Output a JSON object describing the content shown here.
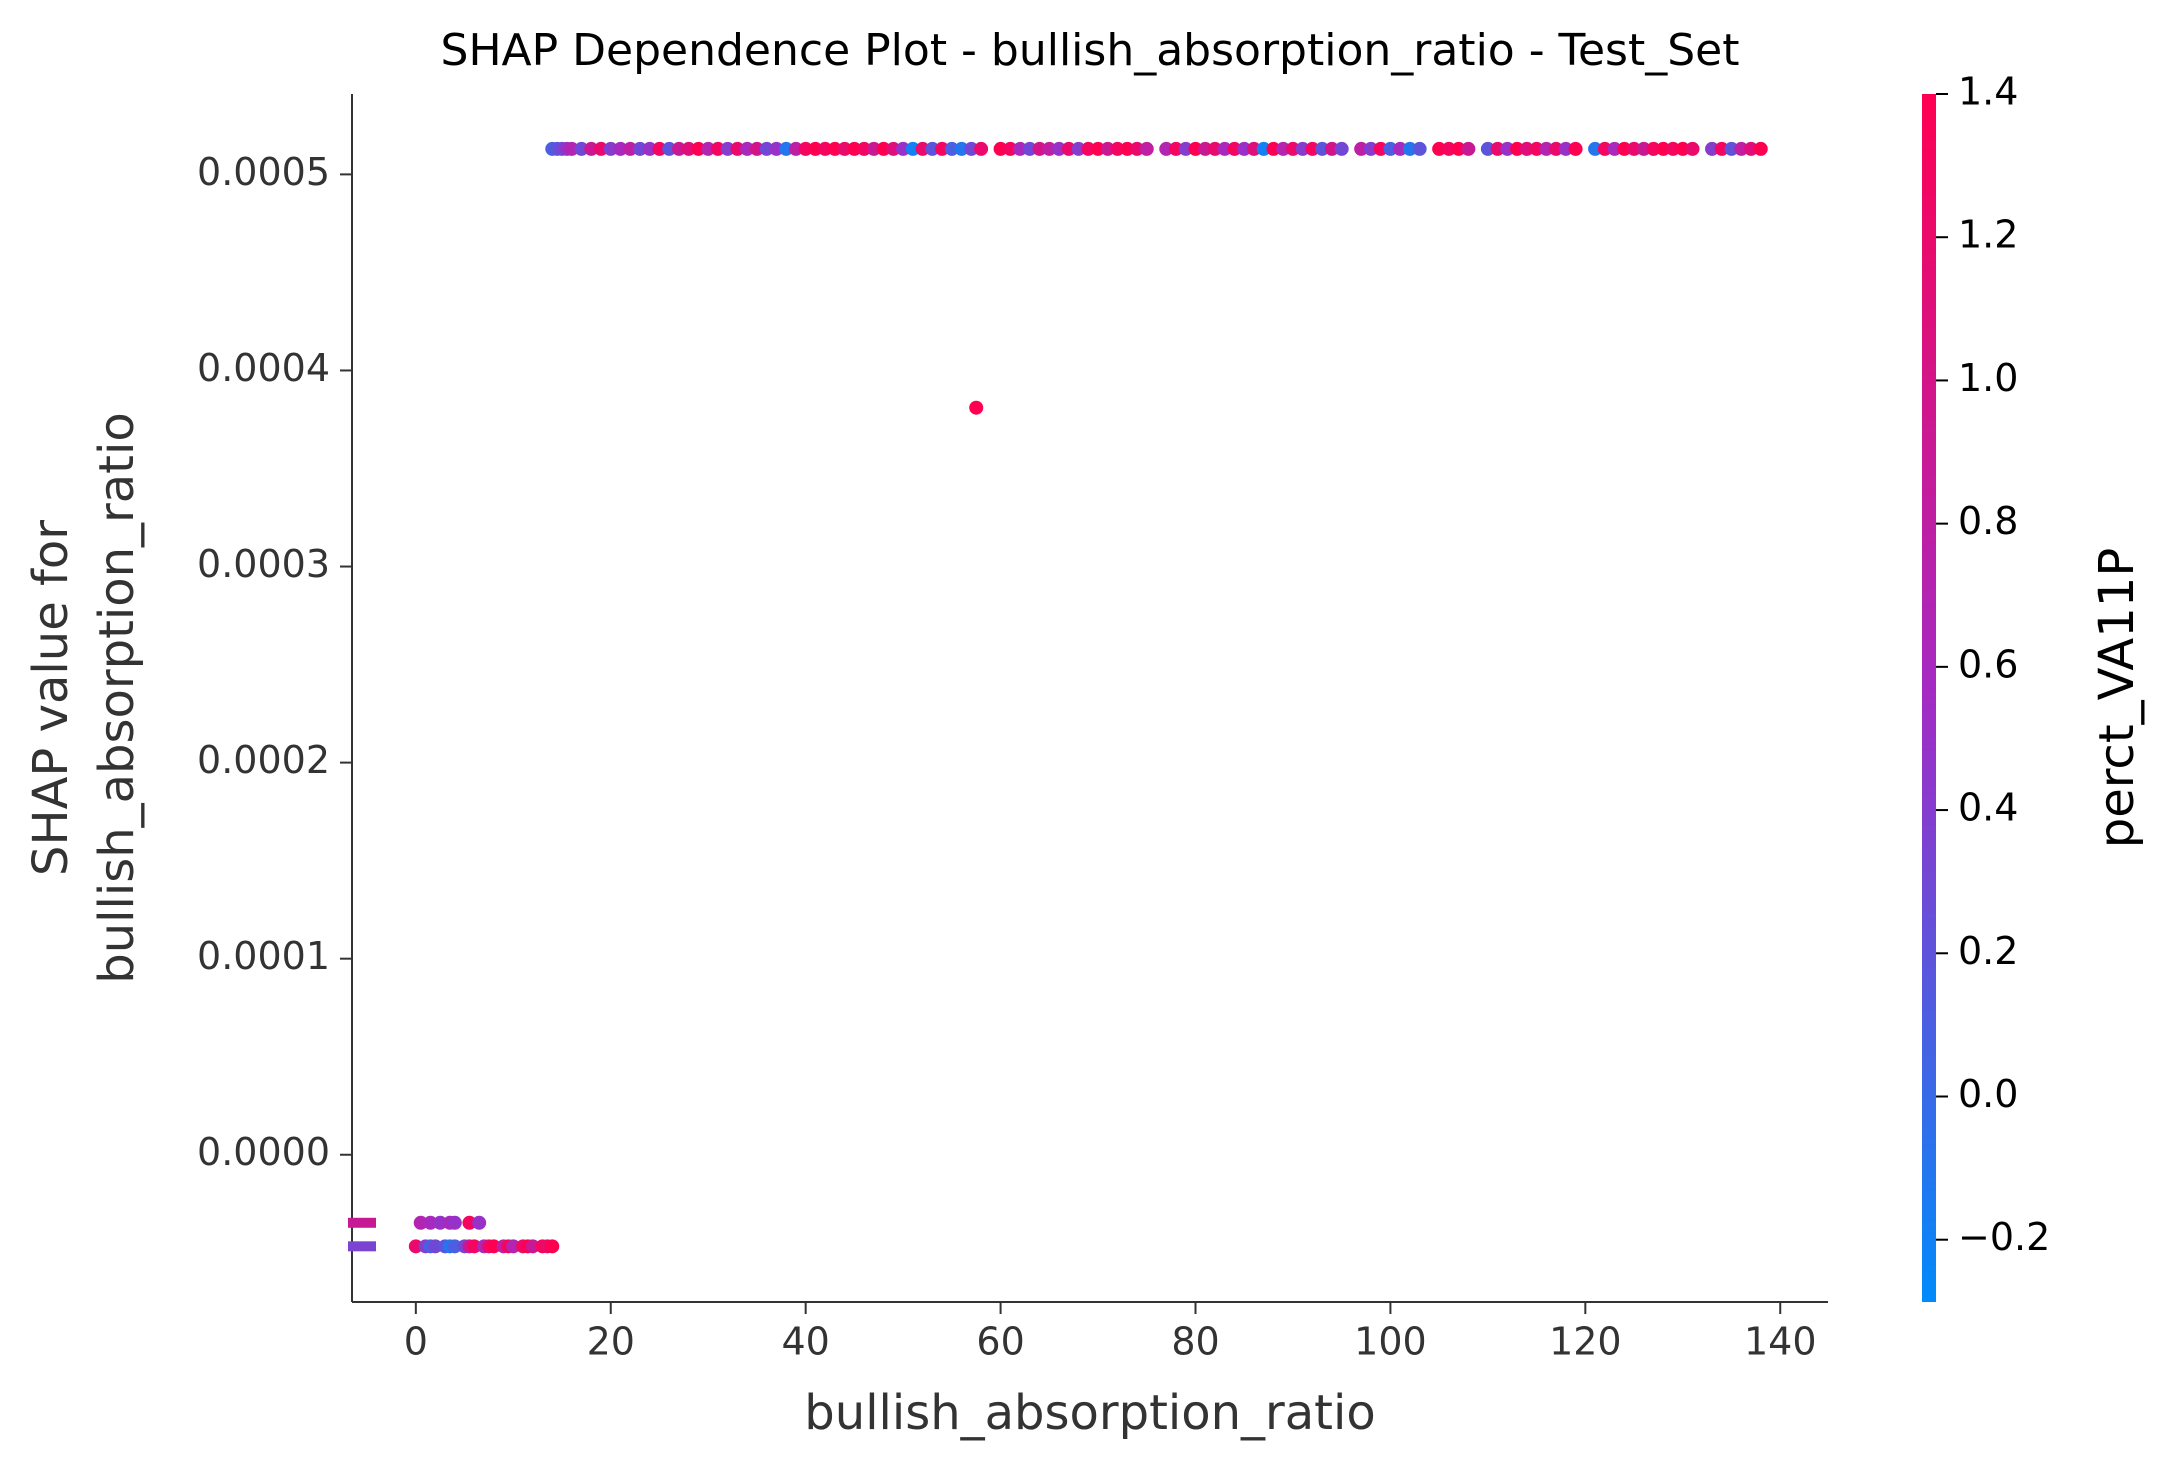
{
  "chart_data": {
    "type": "scatter",
    "title": "SHAP Dependence Plot - bullish_absorption_ratio - Test_Set",
    "xlabel": "bullish_absorption_ratio",
    "ylabel": [
      "SHAP value for",
      "bullish_absorption_ratio"
    ],
    "xlim": [
      -6.55,
      144.9
    ],
    "ylim": [
      -7.51e-05,
      0.000541
    ],
    "xticks": [
      0,
      20,
      40,
      60,
      80,
      100,
      120,
      140
    ],
    "yticks": [
      {
        "value": 0,
        "label": "0.0000"
      },
      {
        "value": 0.0001,
        "label": "0.0001"
      },
      {
        "value": 0.0002,
        "label": "0.0002"
      },
      {
        "value": 0.0003,
        "label": "0.0003"
      },
      {
        "value": 0.0004,
        "label": "0.0004"
      },
      {
        "value": 0.0005,
        "label": "0.0005"
      }
    ],
    "x": [
      14,
      14.5,
      15,
      15.5,
      16,
      17,
      18,
      19,
      20,
      21,
      22,
      23,
      24,
      25,
      26,
      27,
      28,
      29,
      30,
      31,
      32,
      33,
      34,
      35,
      36,
      37,
      38,
      39,
      40,
      41,
      42,
      43,
      44,
      45,
      46,
      47,
      48,
      49,
      50,
      51,
      52,
      53,
      54,
      55,
      56,
      57,
      58,
      60,
      61,
      62,
      63,
      64,
      65,
      66,
      67,
      68,
      69,
      70,
      71,
      72,
      73,
      74,
      75,
      77,
      78,
      79,
      80,
      81,
      82,
      83,
      84,
      85,
      86,
      87,
      88,
      89,
      90,
      91,
      92,
      93,
      94,
      95,
      97,
      98,
      99,
      100,
      101,
      102,
      103,
      105,
      106,
      107,
      108,
      110,
      111,
      112,
      113,
      114,
      115,
      116,
      117,
      118,
      119,
      121,
      122,
      123,
      124,
      125,
      126,
      127,
      128,
      129,
      130,
      131,
      133,
      134,
      135,
      136,
      137,
      138,
      57.5,
      0.5,
      1.5,
      2.5,
      3.5,
      4,
      5.5,
      6.5,
      0,
      1,
      1.5,
      2,
      3,
      3.5,
      4,
      5,
      5.5,
      6,
      7,
      7.5,
      8,
      9,
      9.5,
      10,
      11,
      11.5,
      12,
      13,
      13.5,
      14
    ],
    "values": [
      0.000513,
      0.000513,
      0.000513,
      0.000513,
      0.000513,
      0.000513,
      0.000513,
      0.000513,
      0.000513,
      0.000513,
      0.000513,
      0.000513,
      0.000513,
      0.000513,
      0.000513,
      0.000513,
      0.000513,
      0.000513,
      0.000513,
      0.000513,
      0.000513,
      0.000513,
      0.000513,
      0.000513,
      0.000513,
      0.000513,
      0.000513,
      0.000513,
      0.000513,
      0.000513,
      0.000513,
      0.000513,
      0.000513,
      0.000513,
      0.000513,
      0.000513,
      0.000513,
      0.000513,
      0.000513,
      0.000513,
      0.000513,
      0.000513,
      0.000513,
      0.000513,
      0.000513,
      0.000513,
      0.000513,
      0.000513,
      0.000513,
      0.000513,
      0.000513,
      0.000513,
      0.000513,
      0.000513,
      0.000513,
      0.000513,
      0.000513,
      0.000513,
      0.000513,
      0.000513,
      0.000513,
      0.000513,
      0.000513,
      0.000513,
      0.000513,
      0.000513,
      0.000513,
      0.000513,
      0.000513,
      0.000513,
      0.000513,
      0.000513,
      0.000513,
      0.000513,
      0.000513,
      0.000513,
      0.000513,
      0.000513,
      0.000513,
      0.000513,
      0.000513,
      0.000513,
      0.000513,
      0.000513,
      0.000513,
      0.000513,
      0.000513,
      0.000513,
      0.000513,
      0.000513,
      0.000513,
      0.000513,
      0.000513,
      0.000513,
      0.000513,
      0.000513,
      0.000513,
      0.000513,
      0.000513,
      0.000513,
      0.000513,
      0.000513,
      0.000513,
      0.000513,
      0.000513,
      0.000513,
      0.000513,
      0.000513,
      0.000513,
      0.000513,
      0.000513,
      0.000513,
      0.000513,
      0.000513,
      0.000513,
      0.000513,
      0.000513,
      0.000513,
      0.000513,
      0.000513,
      0.000381,
      -3.47e-05,
      -3.47e-05,
      -3.47e-05,
      -3.47e-05,
      -3.47e-05,
      -3.47e-05,
      -3.47e-05,
      -4.67e-05,
      -4.67e-05,
      -4.67e-05,
      -4.67e-05,
      -4.67e-05,
      -4.67e-05,
      -4.67e-05,
      -4.67e-05,
      -4.67e-05,
      -4.67e-05,
      -4.67e-05,
      -4.67e-05,
      -4.67e-05,
      -4.67e-05,
      -4.67e-05,
      -4.67e-05,
      -4.67e-05,
      -4.67e-05,
      -4.67e-05,
      -4.67e-05,
      -4.67e-05,
      -4.67e-05
    ],
    "color_values": [
      0.1,
      0.2,
      0.3,
      0.5,
      0.7,
      0.3,
      0.9,
      1.2,
      0.4,
      0.6,
      0.8,
      0.3,
      0.5,
      1.3,
      0.2,
      0.9,
      1.1,
      1.4,
      0.7,
      1.3,
      0.4,
      1.2,
      0.6,
      1.0,
      0.3,
      0.5,
      -0.1,
      0.8,
      1.3,
      1.4,
      1.3,
      1.4,
      1.2,
      1.4,
      1.3,
      0.9,
      1.4,
      1.1,
      0.5,
      -0.2,
      1.2,
      0.2,
      1.3,
      0.1,
      -0.1,
      0.3,
      1.2,
      1.4,
      1.3,
      0.6,
      0.3,
      1.0,
      0.8,
      0.5,
      1.2,
      0.4,
      1.3,
      1.4,
      0.9,
      1.3,
      1.4,
      1.2,
      0.8,
      0.7,
      1.3,
      0.4,
      1.4,
      0.9,
      1.2,
      0.6,
      1.3,
      0.5,
      1.1,
      -0.2,
      1.4,
      0.7,
      1.2,
      0.4,
      1.3,
      0.2,
      1.0,
      0.3,
      0.8,
      0.4,
      1.3,
      0.1,
      0.6,
      -0.1,
      0.2,
      1.4,
      1.3,
      1.4,
      0.9,
      0.2,
      1.2,
      0.5,
      1.4,
      1.1,
      1.3,
      0.7,
      1.2,
      0.5,
      1.4,
      -0.1,
      1.3,
      0.6,
      1.4,
      1.2,
      0.9,
      1.3,
      1.4,
      1.3,
      1.4,
      1.2,
      0.4,
      1.3,
      0.2,
      0.8,
      1.1,
      1.4,
      1.4,
      0.7,
      0.6,
      0.5,
      0.6,
      0.5,
      1.3,
      0.5,
      1.2,
      0.4,
      0.1,
      0.3,
      0.2,
      -0.1,
      0.1,
      0.3,
      0.9,
      1.3,
      0.6,
      1.2,
      1.4,
      0.8,
      1.3,
      0.7,
      1.2,
      1.4,
      0.9,
      1.3,
      1.2,
      1.4
    ],
    "nan_values": [
      -3.47e-05,
      -4.67e-05
    ],
    "nan_color_values": [
      0.9,
      0.35
    ],
    "colorbar": {
      "label": "perct_VA11P",
      "lim": [
        -0.287,
        1.4
      ],
      "colors": [
        "#008bfb",
        "#a32bc4",
        "#ff0051"
      ],
      "ticks": [
        {
          "value": -0.2,
          "label": "−0.2"
        },
        {
          "value": 0,
          "label": "0.0"
        },
        {
          "value": 0.2,
          "label": "0.2"
        },
        {
          "value": 0.4,
          "label": "0.4"
        },
        {
          "value": 0.6,
          "label": "0.6"
        },
        {
          "value": 0.8,
          "label": "0.8"
        },
        {
          "value": 1.0,
          "label": "1.0"
        },
        {
          "value": 1.2,
          "label": "1.2"
        },
        {
          "value": 1.4,
          "label": "1.4"
        }
      ]
    }
  }
}
